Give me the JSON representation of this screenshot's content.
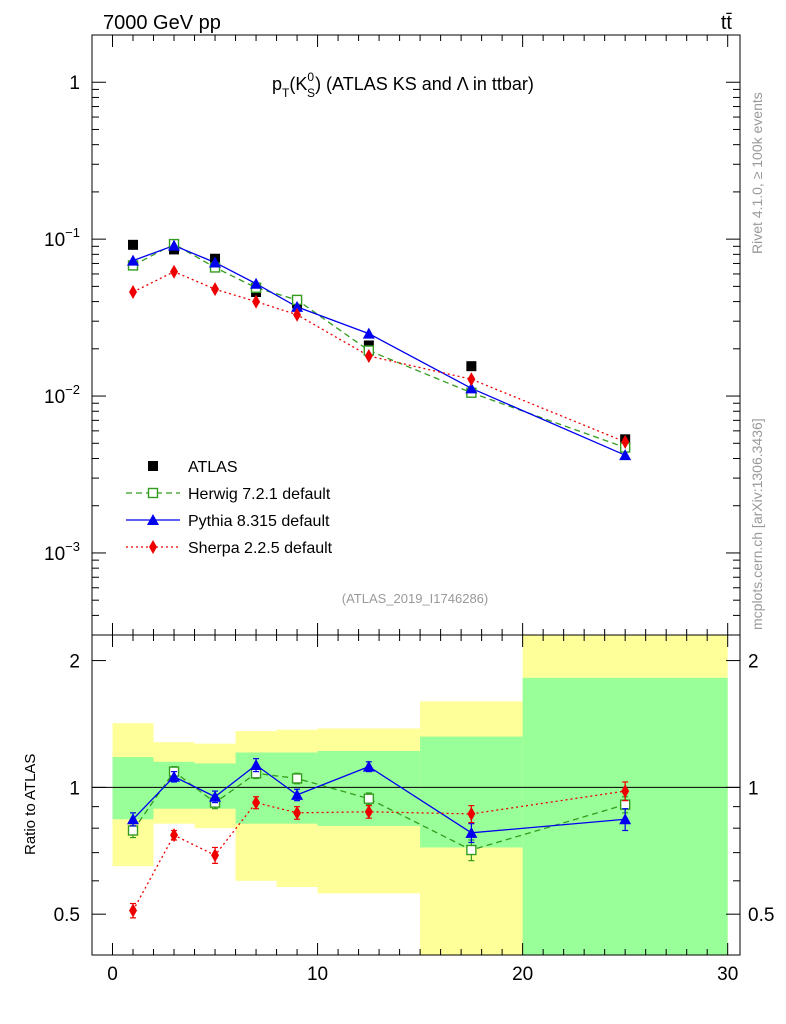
{
  "header": {
    "left": "7000 GeV pp",
    "right": "tt̄"
  },
  "side_labels": {
    "rivet": "Rivet 4.1.0, ≥ 100k events",
    "mcplots": "mcplots.cern.ch [arXiv:1306.3436]"
  },
  "chart_data": [
    {
      "panel": "main",
      "type": "scatter",
      "title": "p_T(K_S^0) (ATLAS KS and Λ in ttbar)",
      "title_parts": {
        "p": "p",
        "T": "T",
        "open": "(K",
        "sup": "0",
        "sub": "S",
        "rest": ") (ATLAS KS and Λ in ttbar)"
      },
      "analysis_id": "(ATLAS_2019_I1746286)",
      "yscale": "log",
      "xlim": [
        -1,
        30.6
      ],
      "ylim": [
        0.0003,
        2.0
      ],
      "y_tick_labels": [
        {
          "value": 1,
          "base": "1",
          "exp": ""
        },
        {
          "value": 0.1,
          "base": "10",
          "exp": "−1"
        },
        {
          "value": 0.01,
          "base": "10",
          "exp": "−2"
        },
        {
          "value": 0.001,
          "base": "10",
          "exp": "−3"
        }
      ],
      "legend_position": "lower-left",
      "series": [
        {
          "name": "ATLAS",
          "label": "ATLAS",
          "color": "#000000",
          "marker": "square-filled",
          "line": "none",
          "x": [
            1,
            3,
            5,
            7,
            9,
            12.5,
            17.5,
            25
          ],
          "y": [
            0.092,
            0.086,
            0.075,
            0.046,
            0.039,
            0.021,
            0.0155,
            0.0053
          ]
        },
        {
          "name": "Herwig",
          "label": "Herwig 7.2.1 default",
          "color": "#339c1f",
          "marker": "square-open",
          "line": "dashed",
          "x": [
            1,
            3,
            5,
            7,
            9,
            12.5,
            17.5,
            25
          ],
          "y": [
            0.068,
            0.093,
            0.066,
            0.049,
            0.041,
            0.0195,
            0.0105,
            0.0047
          ]
        },
        {
          "name": "Pythia",
          "label": "Pythia 8.315 default",
          "color": "#0000ee",
          "marker": "triangle-filled",
          "line": "solid",
          "x": [
            1,
            3,
            5,
            7,
            9,
            12.5,
            17.5,
            25
          ],
          "y": [
            0.073,
            0.091,
            0.071,
            0.052,
            0.037,
            0.025,
            0.0112,
            0.0042
          ]
        },
        {
          "name": "Sherpa",
          "label": "Sherpa 2.2.5 default",
          "color": "#ee0000",
          "marker": "diamond-filled",
          "line": "dotted",
          "x": [
            1,
            3,
            5,
            7,
            9,
            12.5,
            17.5,
            25
          ],
          "y": [
            0.046,
            0.062,
            0.048,
            0.04,
            0.033,
            0.018,
            0.0128,
            0.0051
          ]
        }
      ]
    },
    {
      "panel": "ratio",
      "type": "scatter",
      "ylabel": "Ratio to ATLAS",
      "yscale": "log",
      "xlim": [
        -1,
        30.6
      ],
      "ylim": [
        0.4,
        2.3
      ],
      "x_tick_labels": [
        0,
        10,
        20,
        30
      ],
      "y_tick_labels": [
        "0.5",
        "1",
        "2"
      ],
      "y_tick_values": [
        0.5,
        1,
        2
      ],
      "reference_line": 1,
      "bands": [
        {
          "x0": 0,
          "x1": 2,
          "yellow": [
            0.65,
            1.42
          ],
          "green": [
            0.84,
            1.18
          ]
        },
        {
          "x0": 2,
          "x1": 4,
          "yellow": [
            0.82,
            1.28
          ],
          "green": [
            0.89,
            1.15
          ]
        },
        {
          "x0": 4,
          "x1": 6,
          "yellow": [
            0.8,
            1.27
          ],
          "green": [
            0.89,
            1.14
          ]
        },
        {
          "x0": 6,
          "x1": 8,
          "yellow": [
            0.6,
            1.36
          ],
          "green": [
            0.82,
            1.21
          ]
        },
        {
          "x0": 8,
          "x1": 10,
          "yellow": [
            0.58,
            1.37
          ],
          "green": [
            0.82,
            1.21
          ]
        },
        {
          "x0": 10,
          "x1": 15,
          "yellow": [
            0.56,
            1.38
          ],
          "green": [
            0.81,
            1.22
          ]
        },
        {
          "x0": 15,
          "x1": 20,
          "yellow": [
            0.39,
            1.6
          ],
          "green": [
            0.72,
            1.32
          ]
        },
        {
          "x0": 20,
          "x1": 30,
          "yellow": [
            0.39,
            2.35
          ],
          "green": [
            0.39,
            1.82
          ]
        }
      ],
      "series": [
        {
          "name": "Herwig",
          "color": "#339c1f",
          "marker": "square-open",
          "line": "dashed",
          "x": [
            1,
            3,
            5,
            7,
            9,
            12.5,
            17.5,
            25
          ],
          "y": [
            0.79,
            1.09,
            0.92,
            1.08,
            1.05,
            0.94,
            0.71,
            0.91
          ],
          "err": [
            0.03,
            0.03,
            0.03,
            0.03,
            0.03,
            0.03,
            0.04,
            0.04
          ]
        },
        {
          "name": "Pythia",
          "color": "#0000ee",
          "marker": "triangle-filled",
          "line": "solid",
          "x": [
            1,
            3,
            5,
            7,
            9,
            12.5,
            17.5,
            25
          ],
          "y": [
            0.84,
            1.06,
            0.95,
            1.13,
            0.96,
            1.12,
            0.78,
            0.84
          ],
          "err": [
            0.03,
            0.03,
            0.03,
            0.04,
            0.03,
            0.03,
            0.04,
            0.05
          ]
        },
        {
          "name": "Sherpa",
          "color": "#ee0000",
          "marker": "diamond-filled",
          "line": "dotted",
          "x": [
            1,
            3,
            5,
            7,
            9,
            12.5,
            17.5,
            25
          ],
          "y": [
            0.51,
            0.77,
            0.69,
            0.92,
            0.87,
            0.875,
            0.865,
            0.98
          ],
          "err": [
            0.02,
            0.02,
            0.03,
            0.03,
            0.03,
            0.03,
            0.04,
            0.05
          ]
        }
      ]
    }
  ]
}
